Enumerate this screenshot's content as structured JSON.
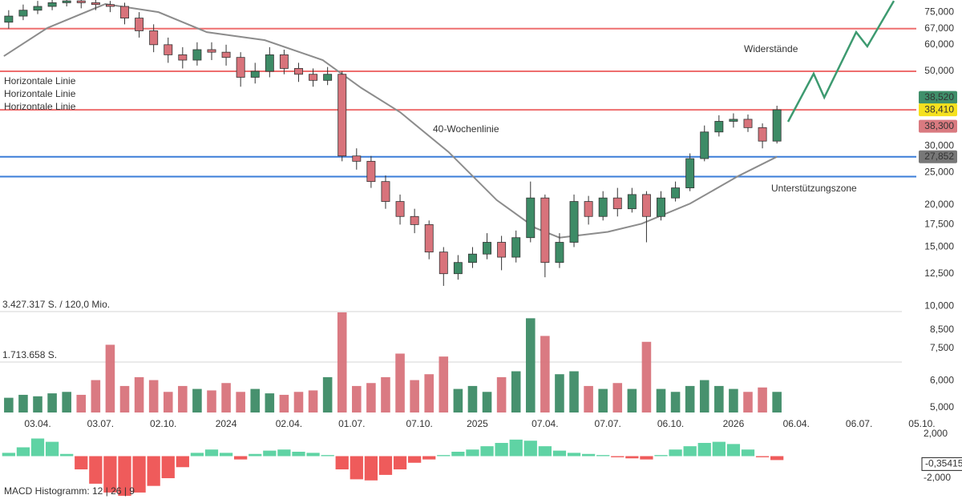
{
  "chart_data": {
    "type": "candlestick",
    "log_scale": true,
    "xlim": [
      -7.8,
      191.3
    ],
    "xticks": [
      {
        "value": 0,
        "label": "03.04."
      },
      {
        "value": 13,
        "label": "03.07."
      },
      {
        "value": 26,
        "label": "02.10."
      },
      {
        "value": 39,
        "label": "2024"
      },
      {
        "value": 52,
        "label": "02.04."
      },
      {
        "value": 65,
        "label": "01.07."
      },
      {
        "value": 79,
        "label": "07.10."
      },
      {
        "value": 91,
        "label": "2025"
      },
      {
        "value": 105,
        "label": "07.04."
      },
      {
        "value": 118,
        "label": "07.07."
      },
      {
        "value": 131,
        "label": "06.10."
      },
      {
        "value": 144,
        "label": "2026"
      },
      {
        "value": 157,
        "label": "06.04."
      },
      {
        "value": 170,
        "label": "06.07."
      },
      {
        "value": 183,
        "label": "05.10."
      }
    ],
    "ylim": [
      4700,
      81500
    ],
    "yticks": [
      {
        "value": 75000,
        "label": "75,000"
      },
      {
        "value": 67000,
        "label": "67,000"
      },
      {
        "value": 60000,
        "label": "60,000"
      },
      {
        "value": 50000,
        "label": "50,000"
      },
      {
        "value": 30000,
        "label": "30,000"
      },
      {
        "value": 25000,
        "label": "25,000"
      },
      {
        "value": 20000,
        "label": "20,000"
      },
      {
        "value": 17500,
        "label": "17,500"
      },
      {
        "value": 15000,
        "label": "15,000"
      },
      {
        "value": 12500,
        "label": "12,500"
      },
      {
        "value": 10000,
        "label": "10,000"
      },
      {
        "value": 8500,
        "label": "8,500"
      },
      {
        "value": 7500,
        "label": "7,500"
      },
      {
        "value": 6000,
        "label": "6,000"
      },
      {
        "value": 5000,
        "label": "5,000"
      }
    ],
    "up_color": "#3d8b66",
    "down_color": "#d8737b",
    "x": [
      -6,
      -3,
      0,
      3,
      6,
      9,
      12,
      15,
      18,
      21,
      24,
      27,
      30,
      33,
      36,
      39,
      42,
      45,
      48,
      51,
      54,
      57,
      60,
      63,
      66,
      69,
      72,
      75,
      78,
      81,
      84,
      87,
      90,
      93,
      96,
      99,
      102,
      105,
      108,
      111,
      114,
      117,
      120,
      123,
      126,
      129,
      132,
      135,
      138,
      141,
      144,
      147,
      150,
      153
    ],
    "open": [
      70000,
      73000,
      76000,
      78000,
      80000,
      81000,
      80000,
      79000,
      78000,
      72000,
      66000,
      60000,
      56000,
      54000,
      58000,
      57000,
      55000,
      48000,
      50000,
      56000,
      51000,
      49000,
      47000,
      49000,
      28000,
      27000,
      23500,
      20500,
      18500,
      17500,
      14500,
      12500,
      13500,
      14300,
      15500,
      14000,
      16000,
      21000,
      13500,
      15500,
      20500,
      18500,
      21000,
      19500,
      21500,
      18500,
      21000,
      22500,
      27500,
      33000,
      35500,
      36000,
      34000,
      31000
    ],
    "high": [
      76000,
      79000,
      81000,
      83000,
      84000,
      84000,
      82000,
      81000,
      80000,
      75000,
      69000,
      63000,
      59000,
      61000,
      61000,
      60000,
      57000,
      53000,
      59000,
      58000,
      53000,
      51000,
      51500,
      50000,
      29500,
      28000,
      24500,
      21500,
      19500,
      18000,
      15000,
      14200,
      15000,
      16500,
      16200,
      16800,
      23500,
      21500,
      16500,
      21500,
      21300,
      22000,
      22500,
      22500,
      22000,
      22000,
      23500,
      28500,
      34500,
      37000,
      37500,
      37200,
      35000,
      39500
    ],
    "low": [
      67000,
      71000,
      74000,
      76000,
      78000,
      77000,
      76000,
      75000,
      69000,
      63000,
      57000,
      53000,
      51000,
      52000,
      54000,
      52000,
      45000,
      46000,
      48000,
      49000,
      46500,
      45000,
      45500,
      27000,
      25500,
      22500,
      19500,
      17500,
      16500,
      13800,
      11500,
      12000,
      13000,
      13800,
      12800,
      13500,
      15500,
      12200,
      13000,
      15000,
      17500,
      18000,
      18500,
      19000,
      15500,
      18000,
      20500,
      22000,
      27000,
      32000,
      34000,
      33000,
      29500,
      30500
    ],
    "close": [
      73000,
      76000,
      78000,
      80000,
      81000,
      80000,
      79000,
      78000,
      72000,
      66000,
      60000,
      56000,
      54000,
      58000,
      57000,
      55000,
      48000,
      50000,
      56000,
      51000,
      49000,
      47000,
      49000,
      28000,
      27000,
      23500,
      20500,
      18500,
      17500,
      14500,
      12500,
      13500,
      14300,
      15500,
      14000,
      16000,
      21000,
      13500,
      15500,
      20500,
      18500,
      21000,
      19500,
      21500,
      18500,
      21000,
      22500,
      27500,
      33000,
      35500,
      36000,
      34000,
      31000,
      38410
    ],
    "moving_average": {
      "name": "40-Wochenlinie",
      "color": "#8c8c8c",
      "x": [
        -7,
        2,
        14,
        25,
        35,
        47,
        59,
        67,
        75,
        85,
        95,
        103,
        108,
        118,
        125,
        135,
        145,
        153
      ],
      "values": [
        55500,
        67300,
        79300,
        75000,
        65400,
        61900,
        54000,
        44600,
        37800,
        28800,
        20700,
        17100,
        16000,
        16650,
        17600,
        20200,
        24400,
        27852
      ]
    },
    "projection": {
      "color": "#3d9a70",
      "x": [
        155.3,
        160.6,
        162.8,
        169.4,
        171.7,
        177.2
      ],
      "values": [
        35400,
        49200,
        41800,
        65400,
        59300,
        81000
      ]
    },
    "levels": [
      {
        "value": 67000,
        "color": "#ee6e6e"
      },
      {
        "value": 50000,
        "color": "#ee6e6e"
      },
      {
        "value": 38410,
        "color": "#ee6e6e"
      },
      {
        "value": 27852,
        "color": "#3b7dd8"
      },
      {
        "value": 24300,
        "color": "#3b7dd8"
      }
    ],
    "level_labels": [
      {
        "text": "Horizontale Linie",
        "color": "#e8585a"
      },
      {
        "text": "Horizontale Linie",
        "color": "#e8585a"
      },
      {
        "text": "Horizontale Linie",
        "color": "#3b7dd8"
      }
    ],
    "annotations": [
      {
        "text": "Widerstände",
        "color": "#e8585a"
      },
      {
        "text": "Unterstützungszone",
        "color": "#3b7dd8"
      }
    ],
    "price_labels": [
      {
        "value": 38520,
        "label": "38,520",
        "color": "#3f8f6a",
        "text_color": "#ffffff"
      },
      {
        "value": 38410,
        "label": "38,410",
        "color": "#f5e11e",
        "text_color": "#000000"
      },
      {
        "value": 38300,
        "label": "38,300",
        "color": "#d97a80",
        "text_color": "#ffffff"
      },
      {
        "value": 27852,
        "label": "27,852",
        "color": "#777777",
        "text_color": "#ffffff"
      }
    ],
    "volume": {
      "ylim": [
        0,
        3427317
      ],
      "yticks": [
        {
          "value": 3427317,
          "label": "3.427.317 S. / 120,0 Mio."
        },
        {
          "value": 1713658,
          "label": "1.713.658 S."
        }
      ],
      "values": [
        500000,
        600000,
        550000,
        650000,
        700000,
        600000,
        1100000,
        2300000,
        900000,
        1200000,
        1100000,
        700000,
        900000,
        800000,
        750000,
        1000000,
        700000,
        800000,
        650000,
        600000,
        700000,
        750000,
        1200000,
        3400000,
        900000,
        1000000,
        1200000,
        2000000,
        1100000,
        1300000,
        1900000,
        800000,
        900000,
        700000,
        1200000,
        1400000,
        3200000,
        2600000,
        1300000,
        1400000,
        900000,
        800000,
        1000000,
        800000,
        2400000,
        800000,
        700000,
        900000,
        1100000,
        900000,
        800000,
        700000,
        850000,
        700000
      ]
    },
    "macd": {
      "name": "MACD Histogramm: 12 | 26 | 9",
      "ylim": [
        -4.25,
        2.87
      ],
      "yticks": [
        {
          "value": 2,
          "label": "2,000"
        },
        {
          "value": -2,
          "label": "-2,000"
        }
      ],
      "positive_color": "#5fd3a4",
      "negative_color": "#ef5b5b",
      "values": [
        0.3,
        0.8,
        1.6,
        1.3,
        0.2,
        -1.2,
        -2.5,
        -3.3,
        -3.6,
        -3.3,
        -2.7,
        -2.0,
        -1.0,
        0.3,
        0.6,
        0.3,
        -0.3,
        0.2,
        0.5,
        0.6,
        0.4,
        0.3,
        0.1,
        -1.2,
        -2.1,
        -2.2,
        -1.7,
        -1.2,
        -0.6,
        -0.3,
        0.1,
        0.4,
        0.6,
        0.9,
        1.2,
        1.5,
        1.4,
        0.9,
        0.5,
        0.3,
        0.2,
        0.1,
        -0.1,
        -0.2,
        -0.3,
        0.1,
        0.6,
        0.9,
        1.2,
        1.3,
        1.1,
        0.6,
        -0.1,
        -0.35415
      ],
      "last_label": {
        "value": -0.35415,
        "label": "-0,35415"
      }
    }
  }
}
